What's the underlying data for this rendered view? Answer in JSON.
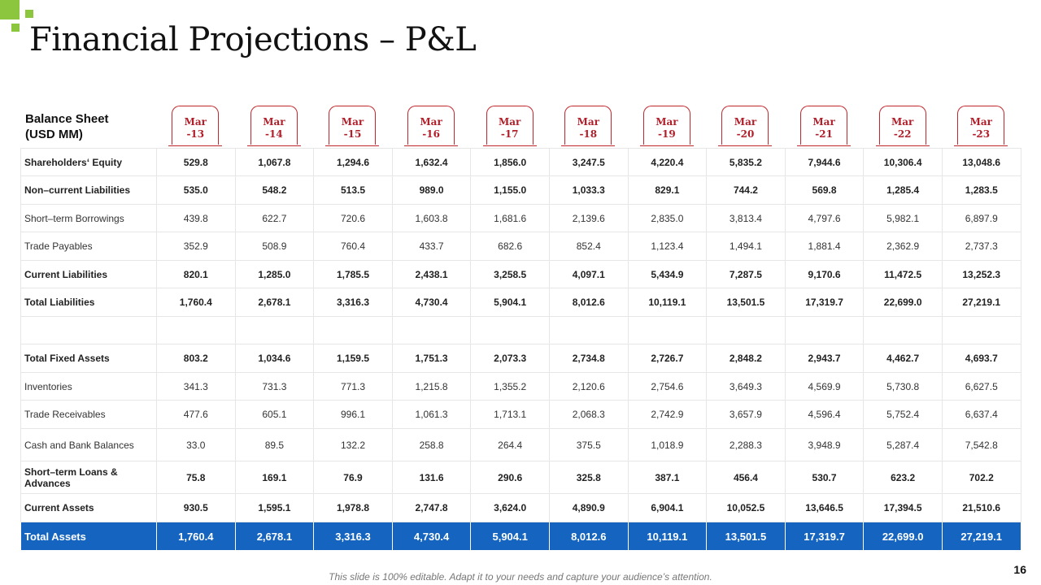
{
  "slide": {
    "title": "Financial Projections – P&L",
    "footer": "This slide is 100% editable. Adapt it to your needs and capture your audience’s attention.",
    "page_number": "16"
  },
  "colors": {
    "accent_green": "#8cc63f",
    "tab_red": "#b11f2a",
    "total_blue": "#1565c0"
  },
  "table": {
    "header_label_line1": "Balance Sheet",
    "header_label_line2": "(USD MM)",
    "columns": [
      {
        "l1": "Mar",
        "l2": "-13"
      },
      {
        "l1": "Mar",
        "l2": "-14"
      },
      {
        "l1": "Mar",
        "l2": "-15"
      },
      {
        "l1": "Mar",
        "l2": "-16"
      },
      {
        "l1": "Mar",
        "l2": "-17"
      },
      {
        "l1": "Mar",
        "l2": "-18"
      },
      {
        "l1": "Mar",
        "l2": "-19"
      },
      {
        "l1": "Mar",
        "l2": "-20"
      },
      {
        "l1": "Mar",
        "l2": "-21"
      },
      {
        "l1": "Mar",
        "l2": "-22"
      },
      {
        "l1": "Mar",
        "l2": "-23"
      }
    ],
    "rows": [
      {
        "label": "Shareholders‘ Equity",
        "style": "bold",
        "values": [
          "529.8",
          "1,067.8",
          "1,294.6",
          "1,632.4",
          "1,856.0",
          "3,247.5",
          "4,220.4",
          "5,835.2",
          "7,944.6",
          "10,306.4",
          "13,048.6"
        ]
      },
      {
        "label": "Non–current Liabilities",
        "style": "bold",
        "values": [
          "535.0",
          "548.2",
          "513.5",
          "989.0",
          "1,155.0",
          "1,033.3",
          "829.1",
          "744.2",
          "569.8",
          "1,285.4",
          "1,283.5"
        ]
      },
      {
        "label": "Short–term Borrowings",
        "style": "normal",
        "values": [
          "439.8",
          "622.7",
          "720.6",
          "1,603.8",
          "1,681.6",
          "2,139.6",
          "2,835.0",
          "3,813.4",
          "4,797.6",
          "5,982.1",
          "6,897.9"
        ]
      },
      {
        "label": "Trade Payables",
        "style": "normal",
        "values": [
          "352.9",
          "508.9",
          "760.4",
          "433.7",
          "682.6",
          "852.4",
          "1,123.4",
          "1,494.1",
          "1,881.4",
          "2,362.9",
          "2,737.3"
        ]
      },
      {
        "label": "Current Liabilities",
        "style": "bold",
        "values": [
          "820.1",
          "1,285.0",
          "1,785.5",
          "2,438.1",
          "3,258.5",
          "4,097.1",
          "5,434.9",
          "7,287.5",
          "9,170.6",
          "11,472.5",
          "13,252.3"
        ]
      },
      {
        "label": "Total Liabilities",
        "style": "bold",
        "values": [
          "1,760.4",
          "2,678.1",
          "3,316.3",
          "4,730.4",
          "5,904.1",
          "8,012.6",
          "10,119.1",
          "13,501.5",
          "17,319.7",
          "22,699.0",
          "27,219.1"
        ]
      },
      {
        "label": "",
        "style": "spacer",
        "values": [
          "",
          "",
          "",
          "",
          "",
          "",
          "",
          "",
          "",
          "",
          ""
        ]
      },
      {
        "label": "Total Fixed Assets",
        "style": "bold",
        "values": [
          "803.2",
          "1,034.6",
          "1,159.5",
          "1,751.3",
          "2,073.3",
          "2,734.8",
          "2,726.7",
          "2,848.2",
          "2,943.7",
          "4,462.7",
          "4,693.7"
        ]
      },
      {
        "label": "Inventories",
        "style": "normal",
        "values": [
          "341.3",
          "731.3",
          "771.3",
          "1,215.8",
          "1,355.2",
          "2,120.6",
          "2,754.6",
          "3,649.3",
          "4,569.9",
          "5,730.8",
          "6,627.5"
        ]
      },
      {
        "label": "Trade Receivables",
        "style": "normal",
        "values": [
          "477.6",
          "605.1",
          "996.1",
          "1,061.3",
          "1,713.1",
          "2,068.3",
          "2,742.9",
          "3,657.9",
          "4,596.4",
          "5,752.4",
          "6,637.4"
        ]
      },
      {
        "label": "Cash and Bank Balances",
        "style": "normal",
        "values": [
          "33.0",
          "89.5",
          "132.2",
          "258.8",
          "264.4",
          "375.5",
          "1,018.9",
          "2,288.3",
          "3,948.9",
          "5,287.4",
          "7,542.8"
        ]
      },
      {
        "label": "Short–term Loans & Advances",
        "style": "bold",
        "values": [
          "75.8",
          "169.1",
          "76.9",
          "131.6",
          "290.6",
          "325.8",
          "387.1",
          "456.4",
          "530.7",
          "623.2",
          "702.2"
        ]
      },
      {
        "label": "Current Assets",
        "style": "bold",
        "values": [
          "930.5",
          "1,595.1",
          "1,978.8",
          "2,747.8",
          "3,624.0",
          "4,890.9",
          "6,904.1",
          "10,052.5",
          "13,646.5",
          "17,394.5",
          "21,510.6"
        ]
      },
      {
        "label": "Total Assets",
        "style": "total",
        "values": [
          "1,760.4",
          "2,678.1",
          "3,316.3",
          "4,730.4",
          "5,904.1",
          "8,012.6",
          "10,119.1",
          "13,501.5",
          "17,319.7",
          "22,699.0",
          "27,219.1"
        ]
      }
    ]
  }
}
